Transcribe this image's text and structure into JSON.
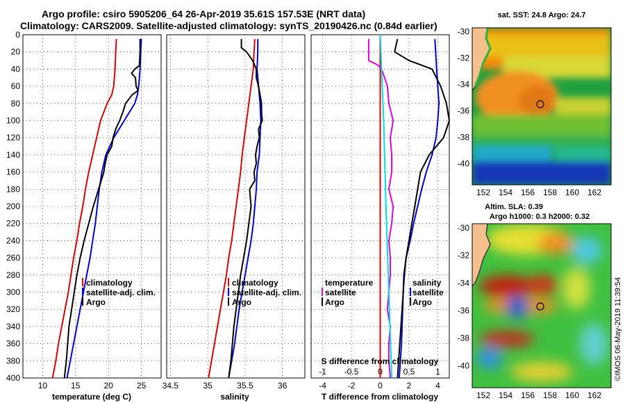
{
  "title": {
    "line1": "Argo profile: csiro 5905206_64 26-Apr-2019 35.61S 157.53E (NRT data)",
    "line2": "Climatology: CARS2009. Satellite-adjusted climatology: synTS_20190426.nc (0.84d earlier)"
  },
  "watermark": "©IMOS 06-May-2019 11:39:54",
  "colors": {
    "climatology": "#e00000",
    "satellite": "#0000dd",
    "argo": "#000000",
    "t_diff": "#e000e0",
    "s_diff": "#00e0e0",
    "land": "#f6c08e"
  },
  "chart_data": [
    {
      "type": "line",
      "name": "temperature",
      "xlabel": "temperature (deg C)",
      "ylabel": "",
      "xlim": [
        7,
        28
      ],
      "ylim": [
        400,
        0
      ],
      "xticks": [
        10,
        15,
        20,
        25
      ],
      "yticks": [
        0,
        20,
        40,
        60,
        80,
        100,
        120,
        140,
        160,
        180,
        200,
        220,
        240,
        260,
        280,
        300,
        320,
        340,
        360,
        380,
        400
      ],
      "legend": [
        "climatology",
        "satellite-adj. clim.",
        "Argo"
      ],
      "series": [
        {
          "name": "climatology",
          "color": "#e00000",
          "depth": [
            5,
            20,
            40,
            60,
            70,
            80,
            100,
            120,
            140,
            160,
            180,
            200,
            220,
            240,
            260,
            280,
            300,
            320,
            340,
            360,
            380,
            400
          ],
          "values": [
            21.2,
            21.1,
            21.0,
            20.8,
            20.5,
            19.8,
            18.8,
            18.2,
            17.6,
            17.0,
            16.5,
            16.1,
            15.6,
            15.2,
            14.7,
            14.3,
            13.9,
            13.4,
            12.9,
            12.4,
            12.0,
            11.5
          ]
        },
        {
          "name": "satellite-adj. clim.",
          "color": "#0000dd",
          "depth": [
            5,
            20,
            40,
            50,
            60,
            70,
            80,
            100,
            120,
            140,
            160,
            180,
            200,
            220,
            240,
            260,
            280,
            300,
            320,
            340,
            360,
            380,
            400
          ],
          "values": [
            25.0,
            24.9,
            24.8,
            24.7,
            24.6,
            24.4,
            24.0,
            22.4,
            20.8,
            19.6,
            19.0,
            18.6,
            18.3,
            18.0,
            17.6,
            17.2,
            16.7,
            16.2,
            15.7,
            15.2,
            14.7,
            14.2,
            13.7
          ]
        },
        {
          "name": "Argo",
          "color": "#000000",
          "depth": [
            5,
            20,
            36,
            40,
            45,
            50,
            60,
            65,
            70,
            80,
            90,
            100,
            110,
            120,
            130,
            140,
            150,
            160,
            180,
            200,
            220,
            240,
            260,
            280,
            300,
            320,
            340,
            360,
            380,
            400
          ],
          "values": [
            24.8,
            24.8,
            24.7,
            24.0,
            23.5,
            24.1,
            24.2,
            24.5,
            23.6,
            22.6,
            22.2,
            21.7,
            21.1,
            20.7,
            20.5,
            19.8,
            19.5,
            19.3,
            18.5,
            17.7,
            17.0,
            16.3,
            15.7,
            15.2,
            14.8,
            14.4,
            14.0,
            13.8,
            13.6,
            13.3
          ]
        }
      ]
    },
    {
      "type": "line",
      "name": "salinity",
      "xlabel": "salinity",
      "xlim": [
        34.45,
        36.3
      ],
      "ylim": [
        400,
        0
      ],
      "xticks": [
        34.5,
        35,
        35.5,
        36
      ],
      "legend": [
        "climatology",
        "satellite-adj. clim.",
        "Argo"
      ],
      "series": [
        {
          "name": "climatology",
          "color": "#e00000",
          "depth": [
            5,
            20,
            40,
            60,
            80,
            100,
            120,
            140,
            160,
            180,
            200,
            220,
            240,
            260,
            280,
            300,
            320,
            340,
            360,
            380,
            400
          ],
          "values": [
            35.63,
            35.62,
            35.61,
            35.58,
            35.55,
            35.52,
            35.49,
            35.46,
            35.44,
            35.41,
            35.38,
            35.35,
            35.32,
            35.28,
            35.25,
            35.21,
            35.17,
            35.13,
            35.09,
            35.05,
            35.01
          ]
        },
        {
          "name": "satellite-adj. clim.",
          "color": "#0000dd",
          "depth": [
            5,
            20,
            40,
            60,
            80,
            100,
            120,
            140,
            160,
            180,
            200,
            220,
            240,
            260,
            280,
            300,
            320,
            340,
            360,
            380,
            400
          ],
          "values": [
            35.67,
            35.67,
            35.66,
            35.68,
            35.7,
            35.71,
            35.7,
            35.69,
            35.66,
            35.65,
            35.63,
            35.61,
            35.58,
            35.54,
            35.5,
            35.46,
            35.42,
            35.39,
            35.36,
            35.32,
            35.28
          ]
        },
        {
          "name": "Argo",
          "color": "#000000",
          "depth": [
            5,
            15,
            18,
            20,
            30,
            40,
            50,
            60,
            70,
            80,
            90,
            100,
            110,
            120,
            130,
            140,
            150,
            160,
            170,
            180,
            200,
            220,
            240,
            260,
            280,
            300,
            320,
            340,
            360,
            380,
            400
          ],
          "values": [
            35.45,
            35.45,
            35.49,
            35.52,
            35.6,
            35.65,
            35.65,
            35.68,
            35.7,
            35.72,
            35.72,
            35.73,
            35.68,
            35.69,
            35.66,
            35.64,
            35.65,
            35.62,
            35.63,
            35.56,
            35.58,
            35.55,
            35.52,
            35.48,
            35.44,
            35.41,
            35.38,
            35.35,
            35.33,
            35.31,
            35.28
          ]
        }
      ]
    },
    {
      "type": "line",
      "name": "difference",
      "xlabel": "T difference from climatology",
      "x2label": "S difference from climatology",
      "xlim": [
        -4.8,
        4.8
      ],
      "x2lim": [
        -1.2,
        1.2
      ],
      "ylim": [
        400,
        0
      ],
      "xticks": [
        -4,
        -2,
        0,
        2,
        4
      ],
      "x2ticks": [
        -1,
        -0.5,
        0,
        0.5,
        1
      ],
      "legend_t": [
        "temperature",
        "satellite",
        "Argo"
      ],
      "legend_s": [
        "salinity",
        "satellite",
        "Argo"
      ],
      "series": [
        {
          "name": "T satellite",
          "color": "#e00000",
          "depth": [
            0,
            400
          ],
          "values": [
            0,
            0
          ]
        },
        {
          "name": "T Argo",
          "color": "#e000e0",
          "depth": [
            5,
            30,
            35,
            40,
            60,
            80,
            100,
            120,
            140,
            160,
            180,
            200,
            220,
            240,
            260,
            280,
            300,
            320,
            340,
            360,
            380,
            400
          ],
          "values": [
            -0.8,
            -0.8,
            -0.2,
            0.1,
            0.5,
            0.6,
            0.9,
            0.7,
            0.8,
            0.8,
            0.6,
            0.9,
            0.8,
            0.6,
            0.7,
            0.7,
            0.6,
            0.5,
            0.7,
            0.6,
            0.6,
            0.7
          ]
        },
        {
          "name": "S satellite",
          "color": "#0000dd",
          "depth": [
            5,
            40,
            60,
            80,
            100,
            120,
            140,
            160,
            180,
            200,
            220,
            240,
            260,
            280,
            300,
            320,
            340,
            360,
            380,
            400
          ],
          "values": [
            0.95,
            0.98,
            1.0,
            1.02,
            1.0,
            0.97,
            0.9,
            0.8,
            0.72,
            0.65,
            0.58,
            0.52,
            0.45,
            0.41,
            0.4,
            0.39,
            0.38,
            0.37,
            0.35,
            0.33
          ]
        },
        {
          "name": "S Argo",
          "color": "#000000",
          "depth": [
            5,
            20,
            30,
            40,
            60,
            80,
            100,
            120,
            140,
            160,
            180,
            200,
            220,
            240,
            260,
            280,
            300,
            320,
            340,
            360,
            380,
            400
          ],
          "values": [
            0.3,
            0.25,
            0.5,
            0.9,
            1.05,
            1.15,
            1.2,
            1.1,
            0.85,
            0.7,
            0.65,
            0.6,
            0.55,
            0.5,
            0.45,
            0.42,
            0.4,
            0.38,
            0.36,
            0.34,
            0.32,
            0.3
          ]
        },
        {
          "name": "S climatology diff",
          "color": "#00e0e0",
          "depth": [
            0,
            100,
            200,
            300,
            400
          ],
          "values": [
            0.0,
            0.06,
            0.1,
            0.15,
            0.2
          ]
        }
      ]
    },
    {
      "type": "heatmap",
      "name": "sst_map",
      "title": "sat. SST: 24.8 Argo: 24.7",
      "xlim": [
        151,
        163.5
      ],
      "ylim": [
        -41.6,
        -29.7
      ],
      "xticks": [
        152,
        154,
        156,
        158,
        160,
        162
      ],
      "yticks": [
        -30,
        -32,
        -34,
        -36,
        -38,
        -40
      ],
      "marker": [
        157.53,
        -35.61
      ]
    },
    {
      "type": "heatmap",
      "name": "sla_map",
      "title": "Altim. SLA: 0.39",
      "subtitle": "Argo h1000: 0.3 h2000: 0.32",
      "xlim": [
        151,
        163.5
      ],
      "ylim": [
        -41.6,
        -29.7
      ],
      "xticks": [
        152,
        154,
        156,
        158,
        160,
        162
      ],
      "yticks": [
        -30,
        -32,
        -34,
        -36,
        -38,
        -40
      ],
      "marker": [
        157.53,
        -35.61
      ]
    }
  ]
}
